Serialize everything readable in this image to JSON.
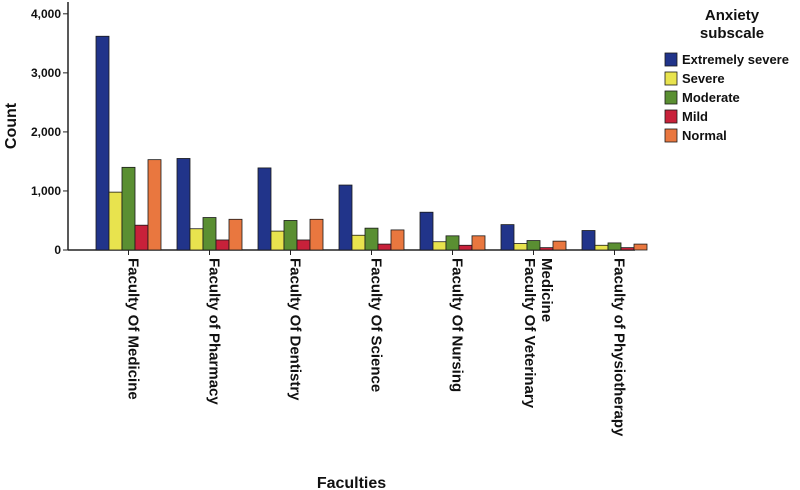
{
  "chart_data": {
    "type": "bar",
    "title": "",
    "xlabel": "Faculties",
    "ylabel": "Count",
    "ylim": [
      0,
      4200
    ],
    "yticks": [
      0,
      1000,
      2000,
      3000,
      4000
    ],
    "ytick_labels": [
      "0",
      "1,000",
      "2,000",
      "3,000",
      "4,000"
    ],
    "grid": false,
    "legend_title": [
      "Anxiety",
      "subscale"
    ],
    "legend_position": "top-right",
    "categories": [
      [
        "Faculty Of Medicine"
      ],
      [
        "Faculty of Pharmacy"
      ],
      [
        "Faculty Of Dentistry"
      ],
      [
        "Faculty Of Science"
      ],
      [
        "Faculty Of Nursing"
      ],
      [
        "Faculty Of Veterinary",
        "Medicine"
      ],
      [
        "Faculty of Physiotherapy"
      ]
    ],
    "series": [
      {
        "name": "Extremely severe",
        "color": "#21348a",
        "values": [
          3620,
          1550,
          1390,
          1100,
          640,
          430,
          330
        ]
      },
      {
        "name": "Severe",
        "color": "#e8e34e",
        "values": [
          980,
          360,
          320,
          250,
          140,
          110,
          80
        ]
      },
      {
        "name": "Moderate",
        "color": "#5a8f32",
        "values": [
          1400,
          550,
          500,
          370,
          240,
          160,
          120
        ]
      },
      {
        "name": "Mild",
        "color": "#c8213a",
        "values": [
          420,
          170,
          170,
          100,
          80,
          40,
          40
        ]
      },
      {
        "name": "Normal",
        "color": "#e9773f",
        "values": [
          1530,
          520,
          520,
          340,
          240,
          150,
          100
        ]
      }
    ]
  }
}
